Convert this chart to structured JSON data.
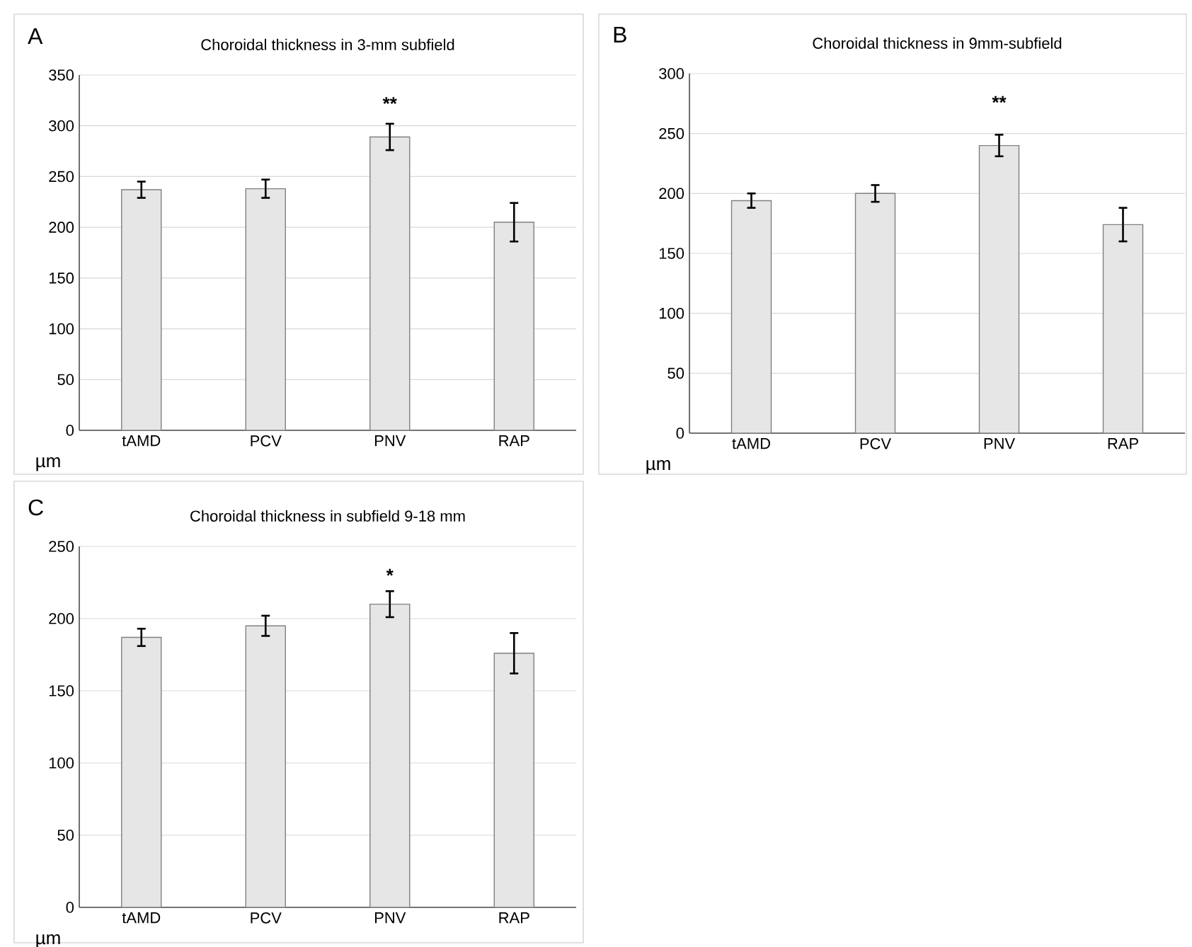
{
  "chart_data": [
    {
      "type": "bar",
      "title": "Choroidal thickness in 3-mm subfield",
      "ylabel": "µm",
      "categories": [
        "tAMD",
        "PCV",
        "PNV",
        "RAP"
      ],
      "values": [
        237,
        238,
        289,
        205
      ],
      "errors": [
        8,
        9,
        13,
        19
      ],
      "color": "#e6e6e6",
      "ylim": [
        0,
        350
      ],
      "yticks": [
        0,
        50,
        100,
        150,
        200,
        250,
        300,
        350
      ],
      "grid": "y",
      "annotations": [
        "A",
        "**"
      ]
    },
    {
      "type": "bar",
      "title": "Choroidal thickness in 9mm-subfield",
      "ylabel": "µm",
      "categories": [
        "tAMD",
        "PCV",
        "PNV",
        "RAP"
      ],
      "values": [
        194,
        200,
        240,
        174
      ],
      "errors": [
        6,
        7,
        9,
        14
      ],
      "color": "#e6e6e6",
      "ylim": [
        0,
        300
      ],
      "yticks": [
        0,
        50,
        100,
        150,
        200,
        250,
        300
      ],
      "grid": "y",
      "annotations": [
        "B",
        "**"
      ]
    },
    {
      "type": "bar",
      "title": "Choroidal thickness in subfield 9-18 mm",
      "ylabel": "µm",
      "categories": [
        "tAMD",
        "PCV",
        "PNV",
        "RAP"
      ],
      "values": [
        187,
        195,
        210,
        176
      ],
      "errors": [
        6,
        7,
        9,
        14
      ],
      "color": "#e6e6e6",
      "ylim": [
        0,
        250
      ],
      "yticks": [
        0,
        50,
        100,
        150,
        200,
        250
      ],
      "grid": "y",
      "annotations": [
        "C",
        "*"
      ]
    }
  ]
}
